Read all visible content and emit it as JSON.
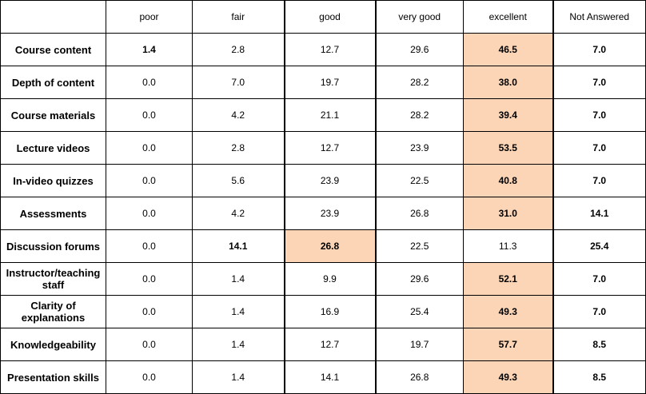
{
  "table": {
    "columns": [
      "",
      "poor",
      "fair",
      "good",
      "very good",
      "excellent",
      "Not Answered"
    ],
    "rows": [
      {
        "label": "Course content",
        "values": [
          "1.4",
          "2.8",
          "12.7",
          "29.6",
          "46.5",
          "7.0"
        ],
        "bold": [
          true,
          false,
          false,
          false,
          true,
          true
        ],
        "highlight": [
          false,
          false,
          false,
          false,
          true,
          false
        ]
      },
      {
        "label": "Depth of content",
        "values": [
          "0.0",
          "7.0",
          "19.7",
          "28.2",
          "38.0",
          "7.0"
        ],
        "bold": [
          false,
          false,
          false,
          false,
          true,
          true
        ],
        "highlight": [
          false,
          false,
          false,
          false,
          true,
          false
        ]
      },
      {
        "label": "Course materials",
        "values": [
          "0.0",
          "4.2",
          "21.1",
          "28.2",
          "39.4",
          "7.0"
        ],
        "bold": [
          false,
          false,
          false,
          false,
          true,
          true
        ],
        "highlight": [
          false,
          false,
          false,
          false,
          true,
          false
        ]
      },
      {
        "label": "Lecture videos",
        "values": [
          "0.0",
          "2.8",
          "12.7",
          "23.9",
          "53.5",
          "7.0"
        ],
        "bold": [
          false,
          false,
          false,
          false,
          true,
          true
        ],
        "highlight": [
          false,
          false,
          false,
          false,
          true,
          false
        ]
      },
      {
        "label": "In-video quizzes",
        "values": [
          "0.0",
          "5.6",
          "23.9",
          "22.5",
          "40.8",
          "7.0"
        ],
        "bold": [
          false,
          false,
          false,
          false,
          true,
          true
        ],
        "highlight": [
          false,
          false,
          false,
          false,
          true,
          false
        ]
      },
      {
        "label": "Assessments",
        "values": [
          "0.0",
          "4.2",
          "23.9",
          "26.8",
          "31.0",
          "14.1"
        ],
        "bold": [
          false,
          false,
          false,
          false,
          true,
          true
        ],
        "highlight": [
          false,
          false,
          false,
          false,
          true,
          false
        ]
      },
      {
        "label": "Discussion forums",
        "values": [
          "0.0",
          "14.1",
          "26.8",
          "22.5",
          "11.3",
          "25.4"
        ],
        "bold": [
          false,
          true,
          true,
          false,
          false,
          true
        ],
        "highlight": [
          false,
          false,
          true,
          false,
          false,
          false
        ]
      },
      {
        "label": "Instructor/teaching staff",
        "values": [
          "0.0",
          "1.4",
          "9.9",
          "29.6",
          "52.1",
          "7.0"
        ],
        "bold": [
          false,
          false,
          false,
          false,
          true,
          true
        ],
        "highlight": [
          false,
          false,
          false,
          false,
          true,
          false
        ]
      },
      {
        "label": "Clarity of explanations",
        "values": [
          "0.0",
          "1.4",
          "16.9",
          "25.4",
          "49.3",
          "7.0"
        ],
        "bold": [
          false,
          false,
          false,
          false,
          true,
          true
        ],
        "highlight": [
          false,
          false,
          false,
          false,
          true,
          false
        ]
      },
      {
        "label": "Knowledgeability",
        "values": [
          "0.0",
          "1.4",
          "12.7",
          "19.7",
          "57.7",
          "8.5"
        ],
        "bold": [
          false,
          false,
          false,
          false,
          true,
          true
        ],
        "highlight": [
          false,
          false,
          false,
          false,
          true,
          false
        ]
      },
      {
        "label": "Presentation skills",
        "values": [
          "0.0",
          "1.4",
          "14.1",
          "26.8",
          "49.3",
          "8.5"
        ],
        "bold": [
          false,
          false,
          false,
          false,
          true,
          true
        ],
        "highlight": [
          false,
          false,
          false,
          false,
          true,
          false
        ]
      }
    ],
    "highlight_color": "#fbd5b5"
  }
}
